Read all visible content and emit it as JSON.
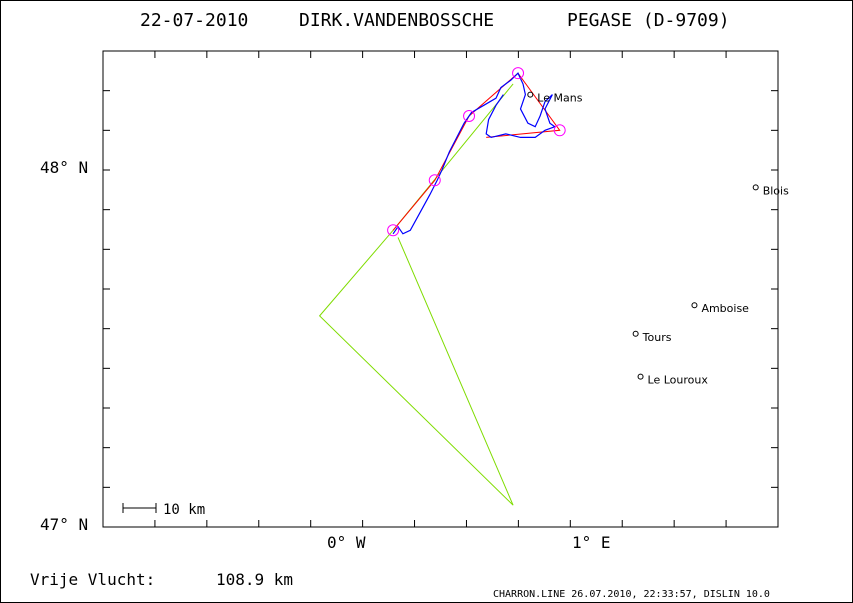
{
  "header": {
    "date": "22-07-2010",
    "pilot": "DIRK.VANDENBOSSCHE",
    "glider": "PEGASE (D-9709)"
  },
  "axes": {
    "lat_labels": [
      {
        "lat": 48.0,
        "text": "48° N"
      },
      {
        "lat": 47.0,
        "text": "47° N"
      }
    ],
    "lon_labels": [
      {
        "lon": 0.0,
        "text": "0° W"
      },
      {
        "lon": 1.0,
        "text": "1° E"
      }
    ],
    "lon_range": [
      -1.0,
      1.75
    ],
    "lat_range": [
      47.0,
      48.31
    ]
  },
  "scale_bar": {
    "label": "10 km"
  },
  "footer": {
    "distance_label": "Vrije Vlucht:",
    "distance_value": "108.9 km",
    "credit": "CHARRON.LINE 26.07.2010, 22:33:57, DISLIN 10.0"
  },
  "colors": {
    "track": "#0000ff",
    "task": "#ff0000",
    "outline": "#7fdc00",
    "turnpoint": "#ff00ff",
    "frame": "#000000"
  },
  "chart_data": {
    "type": "map",
    "cities": [
      {
        "name": "Le Mans",
        "lon": 0.74,
        "lat": 48.2
      },
      {
        "name": "Blois",
        "lon": 1.66,
        "lat": 47.94
      },
      {
        "name": "Amboise",
        "lon": 1.41,
        "lat": 47.61
      },
      {
        "name": "Tours",
        "lon": 1.17,
        "lat": 47.53
      },
      {
        "name": "Le Louroux",
        "lon": 1.19,
        "lat": 47.41
      }
    ],
    "turnpoints": [
      {
        "lon": 0.18,
        "lat": 47.82
      },
      {
        "lon": 0.35,
        "lat": 47.96
      },
      {
        "lon": 0.49,
        "lat": 48.14
      },
      {
        "lon": 0.69,
        "lat": 48.26
      },
      {
        "lon": 0.86,
        "lat": 48.1
      }
    ],
    "task_path": [
      {
        "lon": 0.18,
        "lat": 47.82
      },
      {
        "lon": 0.35,
        "lat": 47.96
      },
      {
        "lon": 0.49,
        "lat": 48.14
      },
      {
        "lon": 0.69,
        "lat": 48.26
      },
      {
        "lon": 0.86,
        "lat": 48.1
      },
      {
        "lon": 0.56,
        "lat": 48.08
      }
    ],
    "outline_path": [
      {
        "lon": 0.18,
        "lat": 47.82
      },
      {
        "lon": 0.67,
        "lat": 48.23
      },
      {
        "lon": 0.18,
        "lat": 47.82
      },
      {
        "lon": -0.12,
        "lat": 47.58
      },
      {
        "lon": 0.67,
        "lat": 47.05
      },
      {
        "lon": 0.2,
        "lat": 47.8
      }
    ],
    "track_path": [
      {
        "lon": 0.18,
        "lat": 47.81
      },
      {
        "lon": 0.2,
        "lat": 47.83
      },
      {
        "lon": 0.22,
        "lat": 47.81
      },
      {
        "lon": 0.25,
        "lat": 47.82
      },
      {
        "lon": 0.29,
        "lat": 47.87
      },
      {
        "lon": 0.33,
        "lat": 47.92
      },
      {
        "lon": 0.36,
        "lat": 47.96
      },
      {
        "lon": 0.38,
        "lat": 47.99
      },
      {
        "lon": 0.41,
        "lat": 48.04
      },
      {
        "lon": 0.44,
        "lat": 48.08
      },
      {
        "lon": 0.47,
        "lat": 48.12
      },
      {
        "lon": 0.5,
        "lat": 48.15
      },
      {
        "lon": 0.55,
        "lat": 48.17
      },
      {
        "lon": 0.6,
        "lat": 48.19
      },
      {
        "lon": 0.62,
        "lat": 48.22
      },
      {
        "lon": 0.66,
        "lat": 48.24
      },
      {
        "lon": 0.69,
        "lat": 48.26
      },
      {
        "lon": 0.71,
        "lat": 48.23
      },
      {
        "lon": 0.72,
        "lat": 48.2
      },
      {
        "lon": 0.7,
        "lat": 48.16
      },
      {
        "lon": 0.73,
        "lat": 48.12
      },
      {
        "lon": 0.76,
        "lat": 48.11
      },
      {
        "lon": 0.78,
        "lat": 48.14
      },
      {
        "lon": 0.8,
        "lat": 48.18
      },
      {
        "lon": 0.83,
        "lat": 48.2
      },
      {
        "lon": 0.8,
        "lat": 48.16
      },
      {
        "lon": 0.82,
        "lat": 48.12
      },
      {
        "lon": 0.84,
        "lat": 48.11
      },
      {
        "lon": 0.8,
        "lat": 48.1
      },
      {
        "lon": 0.76,
        "lat": 48.08
      },
      {
        "lon": 0.7,
        "lat": 48.08
      },
      {
        "lon": 0.64,
        "lat": 48.09
      },
      {
        "lon": 0.58,
        "lat": 48.08
      },
      {
        "lon": 0.56,
        "lat": 48.09
      },
      {
        "lon": 0.57,
        "lat": 48.13
      },
      {
        "lon": 0.6,
        "lat": 48.17
      },
      {
        "lon": 0.63,
        "lat": 48.2
      }
    ]
  }
}
